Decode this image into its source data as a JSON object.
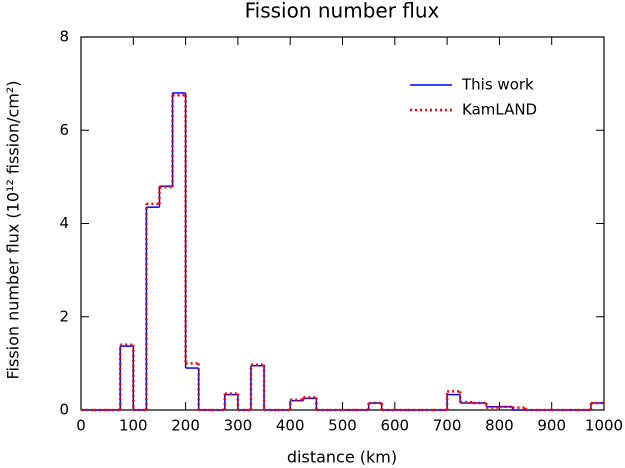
{
  "chart_data": {
    "type": "histogram",
    "title": "Fission number flux",
    "xlabel": "distance (km)",
    "ylabel": "Fission number flux (10¹² fission/cm²)",
    "bins": [
      0,
      25,
      50,
      75,
      100,
      125,
      150,
      175,
      200,
      225,
      250,
      275,
      300,
      325,
      350,
      375,
      400,
      425,
      450,
      475,
      500,
      525,
      550,
      575,
      600,
      625,
      650,
      675,
      700,
      725,
      750,
      775,
      800,
      825,
      850,
      875,
      900,
      925,
      950,
      975,
      1000
    ],
    "series": [
      {
        "name": "This work",
        "color": "#0000ff",
        "style": "solid",
        "values": [
          0,
          0,
          0,
          1.37,
          0,
          4.35,
          4.8,
          6.8,
          0.9,
          0,
          0,
          0.33,
          0,
          0.95,
          0,
          0,
          0.2,
          0.25,
          0,
          0,
          0,
          0,
          0.15,
          0,
          0,
          0,
          0,
          0,
          0.33,
          0.15,
          0.15,
          0.07,
          0.07,
          0,
          0,
          0,
          0,
          0,
          0,
          0.15
        ]
      },
      {
        "name": "KamLAND",
        "color": "#ff0000",
        "style": "dotted",
        "values": [
          0,
          0,
          0,
          1.4,
          0,
          4.42,
          4.78,
          6.75,
          1.0,
          0,
          0,
          0.35,
          0,
          0.97,
          0,
          0,
          0.22,
          0.27,
          0,
          0,
          0,
          0,
          0.15,
          0,
          0,
          0,
          0,
          0,
          0.4,
          0.17,
          0.15,
          0.05,
          0.07,
          0.05,
          0,
          0,
          0,
          0,
          0,
          0.15
        ]
      }
    ],
    "xlim": [
      0,
      1000
    ],
    "xticks": [
      0,
      100,
      200,
      300,
      400,
      500,
      600,
      700,
      800,
      900,
      1000
    ],
    "ylim": [
      0,
      8
    ],
    "yticks": [
      0,
      2,
      4,
      6,
      8
    ],
    "legend": "upper right"
  }
}
